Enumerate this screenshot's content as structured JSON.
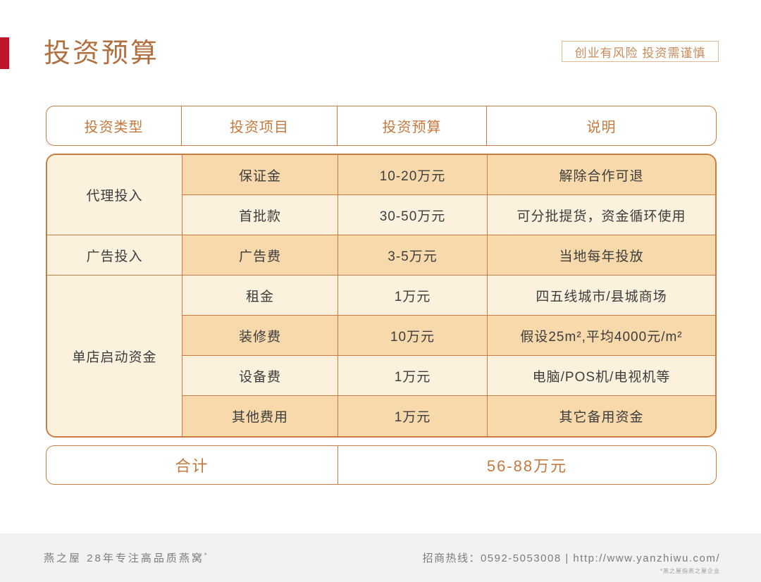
{
  "page": {
    "title": "投资预算",
    "disclaimer": "创业有风险 投资需谨慎"
  },
  "table": {
    "headers": [
      "投资类型",
      "投资项目",
      "投资预算",
      "说明"
    ],
    "groups": [
      {
        "type": "代理投入",
        "rowspan": 2
      },
      {
        "type": "广告投入",
        "rowspan": 1
      },
      {
        "type": "单店启动资金",
        "rowspan": 4
      }
    ],
    "rows": [
      {
        "item": "保证金",
        "budget": "10-20万元",
        "note": "解除合作可退"
      },
      {
        "item": "首批款",
        "budget": "30-50万元",
        "note": "可分批提货，资金循环使用"
      },
      {
        "item": "广告费",
        "budget": "3-5万元",
        "note": "当地每年投放"
      },
      {
        "item": "租金",
        "budget": "1万元",
        "note": "四五线城市/县城商场"
      },
      {
        "item": "装修费",
        "budget": "10万元",
        "note": "假设25m²,平均4000元/m²"
      },
      {
        "item": "设备费",
        "budget": "1万元",
        "note": "电脑/POS机/电视机等"
      },
      {
        "item": "其他费用",
        "budget": "1万元",
        "note": "其它备用资金"
      }
    ],
    "total": {
      "label": "合计",
      "value": "56-88万元"
    }
  },
  "footer": {
    "brand": "燕之屋 28年专注高品质燕窝",
    "brand_mark": "*",
    "contact": "招商热线：0592-5053008 | http://www.yanzhiwu.com/",
    "note": "*燕之屋指燕之屋企业"
  },
  "colors": {
    "accent_red": "#c0152d",
    "border_orange": "#ca7c40",
    "header_text": "#c4793f",
    "title_text": "#b1703f",
    "cell_tan": "#f7d9ab",
    "cell_cream": "#fcf1dd",
    "body_text": "#3d3d3d",
    "footer_bg": "#f2f2f0"
  }
}
